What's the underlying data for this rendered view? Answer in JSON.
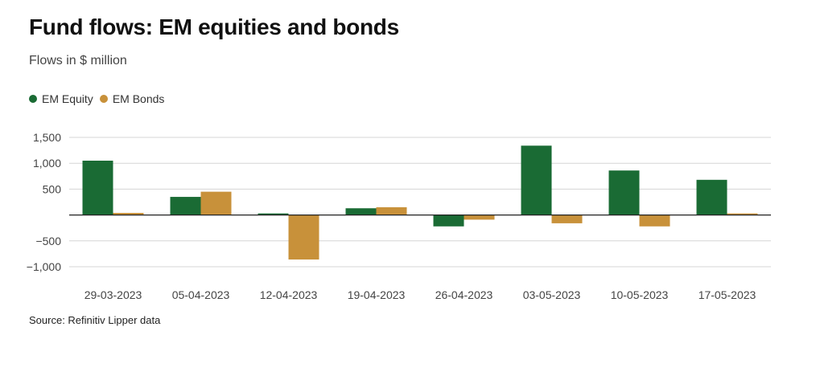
{
  "title": "Fund flows: EM equities and bonds",
  "subtitle": "Flows in $ million",
  "source": "Source: Refinitiv Lipper data",
  "colors": {
    "equity": "#1a6b34",
    "bonds": "#c8913a",
    "grid": "#d5d5d5",
    "zero": "#222222"
  },
  "chart_data": {
    "type": "bar",
    "title": "Fund flows: EM equities and bonds",
    "subtitle": "Flows in $ million",
    "categories": [
      "29-03-2023",
      "05-04-2023",
      "12-04-2023",
      "19-04-2023",
      "26-04-2023",
      "03-05-2023",
      "10-05-2023",
      "17-05-2023"
    ],
    "series": [
      {
        "name": "EM Equity",
        "values": [
          1050,
          350,
          30,
          130,
          -220,
          1340,
          860,
          680
        ]
      },
      {
        "name": "EM Bonds",
        "values": [
          40,
          450,
          -860,
          150,
          -90,
          -160,
          -220,
          30
        ]
      }
    ],
    "yticks": [
      -1000,
      -500,
      0,
      500,
      1000,
      1500
    ],
    "ytick_labels": [
      "−1,000",
      "−500",
      "",
      "500",
      "1,000",
      "1,500"
    ],
    "ylim": [
      -1000,
      1500
    ],
    "xlabel": "",
    "ylabel": "",
    "grid": true,
    "legend": "top-left"
  }
}
